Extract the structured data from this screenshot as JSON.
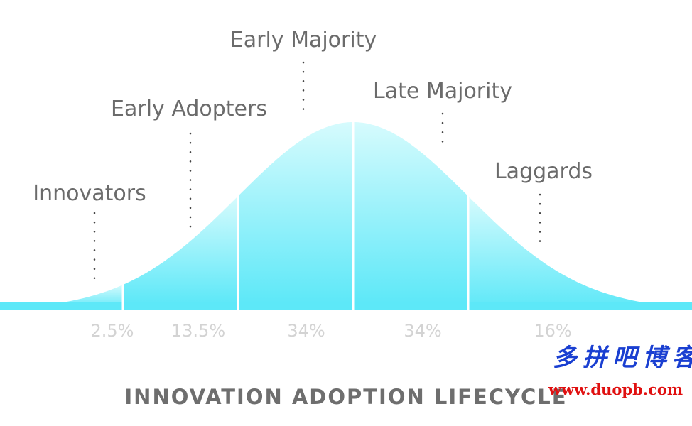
{
  "chart_data": {
    "type": "area",
    "title": "INNOVATION ADOPTION LIFECYCLE",
    "categories": [
      "Innovators",
      "Early Adopters",
      "Early Majority",
      "Late Majority",
      "Laggards"
    ],
    "values": [
      2.5,
      13.5,
      34,
      34,
      16
    ],
    "value_labels": [
      "2.5%",
      "13.5%",
      "34%",
      "34%",
      "16%"
    ],
    "distribution": "normal (bell curve)",
    "segment_boundaries_sd": [
      -3.2,
      -2,
      -1,
      0,
      1,
      3.2
    ],
    "grid": false,
    "legend": "none"
  },
  "colors": {
    "curve_top": "#d6fbfd",
    "curve_bottom": "#5de8f8",
    "divider": "#ffffff",
    "label_text": "#6b6b6b",
    "percent_text": "#d3d3d3",
    "title_text": "#6e6e6e"
  },
  "watermark": {
    "chinese": "多拼吧博客",
    "url": "www.duopb.com"
  }
}
